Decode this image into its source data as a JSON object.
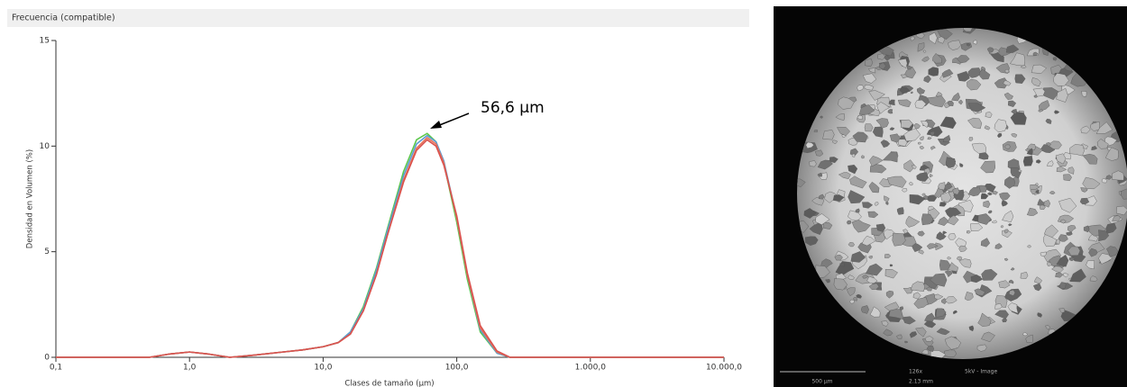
{
  "chart_data": {
    "type": "line",
    "title": "Frecuencia (compatible)",
    "x_label": "Clases de tamaño (µm)",
    "y_label": "Densidad en Volumen (%)",
    "annotation": "56,6 µm",
    "log_x": true,
    "x": [
      0.1,
      0.5,
      0.7,
      1,
      1.4,
      2,
      3,
      5,
      7,
      10,
      13,
      16,
      20,
      25,
      30,
      40,
      50,
      60,
      70,
      80,
      100,
      120,
      150,
      200,
      250,
      1000,
      10000
    ],
    "series": [
      {
        "color": "#5cc84a",
        "values": [
          0,
          0,
          0.15,
          0.25,
          0.15,
          0,
          0.1,
          0.25,
          0.35,
          0.5,
          0.7,
          1.2,
          2.4,
          4.2,
          6,
          8.8,
          10.3,
          10.6,
          10.2,
          9.2,
          6.4,
          3.7,
          1.2,
          0.2,
          0,
          0,
          0
        ]
      },
      {
        "color": "#5b9bd5",
        "values": [
          0,
          0,
          0.15,
          0.25,
          0.15,
          0,
          0.1,
          0.25,
          0.35,
          0.5,
          0.7,
          1.2,
          2.3,
          4.1,
          5.9,
          8.6,
          10.1,
          10.5,
          10.2,
          9.3,
          6.6,
          3.9,
          1.3,
          0.2,
          0,
          0,
          0
        ]
      },
      {
        "color": "#e8735a",
        "values": [
          0,
          0,
          0.15,
          0.25,
          0.15,
          0,
          0.1,
          0.25,
          0.35,
          0.5,
          0.7,
          1.1,
          2.2,
          3.9,
          5.7,
          8.4,
          9.9,
          10.4,
          10.1,
          9.2,
          6.6,
          3.9,
          1.4,
          0.25,
          0,
          0,
          0
        ]
      },
      {
        "color": "#d9534f",
        "values": [
          0,
          0,
          0.15,
          0.25,
          0.15,
          0,
          0.1,
          0.25,
          0.35,
          0.5,
          0.7,
          1.1,
          2.2,
          3.9,
          5.7,
          8.3,
          9.8,
          10.3,
          10,
          9.1,
          6.7,
          4,
          1.5,
          0.3,
          0,
          0,
          0
        ]
      }
    ],
    "xlim": [
      0.1,
      10000
    ],
    "xticks": [
      {
        "value": 0.1,
        "label": "0,1"
      },
      {
        "value": 1,
        "label": "1,0"
      },
      {
        "value": 10,
        "label": "10,0"
      },
      {
        "value": 100,
        "label": "100,0"
      },
      {
        "value": 1000,
        "label": "1.000,0"
      },
      {
        "value": 10000,
        "label": "10.000,0"
      }
    ],
    "ylim": [
      0,
      15
    ],
    "yticks": [
      0,
      5,
      10,
      15
    ]
  },
  "image": {
    "scale_bar": "500 µm",
    "magnification": "126x",
    "mode": "5kV - Image",
    "field": "2.13 mm"
  }
}
